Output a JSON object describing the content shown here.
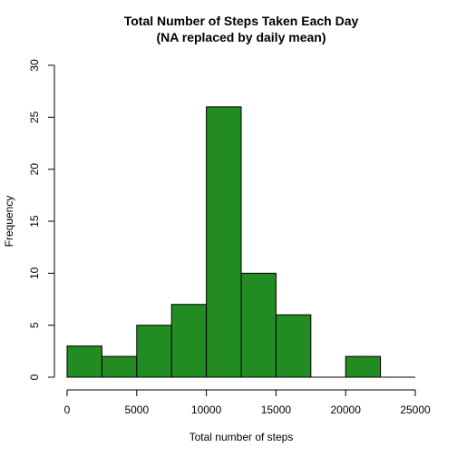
{
  "chart_data": {
    "type": "bar",
    "title": "Total Number of Steps Taken Each Day",
    "subtitle": "(NA replaced by daily mean)",
    "xlabel": "Total number of steps",
    "ylabel": "Frequency",
    "xlim": [
      0,
      25000
    ],
    "ylim": [
      0,
      30
    ],
    "x_ticks": [
      "0",
      "5000",
      "10000",
      "15000",
      "20000",
      "25000"
    ],
    "y_ticks": [
      "0",
      "5",
      "10",
      "15",
      "20",
      "25",
      "30"
    ],
    "bin_width": 2500,
    "bins": [
      {
        "from": 0,
        "to": 2500,
        "count": 3
      },
      {
        "from": 2500,
        "to": 5000,
        "count": 2
      },
      {
        "from": 5000,
        "to": 7500,
        "count": 5
      },
      {
        "from": 7500,
        "to": 10000,
        "count": 7
      },
      {
        "from": 10000,
        "to": 12500,
        "count": 26
      },
      {
        "from": 12500,
        "to": 15000,
        "count": 10
      },
      {
        "from": 15000,
        "to": 17500,
        "count": 6
      },
      {
        "from": 17500,
        "to": 20000,
        "count": 0
      },
      {
        "from": 20000,
        "to": 22500,
        "count": 2
      },
      {
        "from": 22500,
        "to": 25000,
        "count": 0
      }
    ],
    "bar_color": "#228B22",
    "grid": false,
    "legend": "none"
  }
}
